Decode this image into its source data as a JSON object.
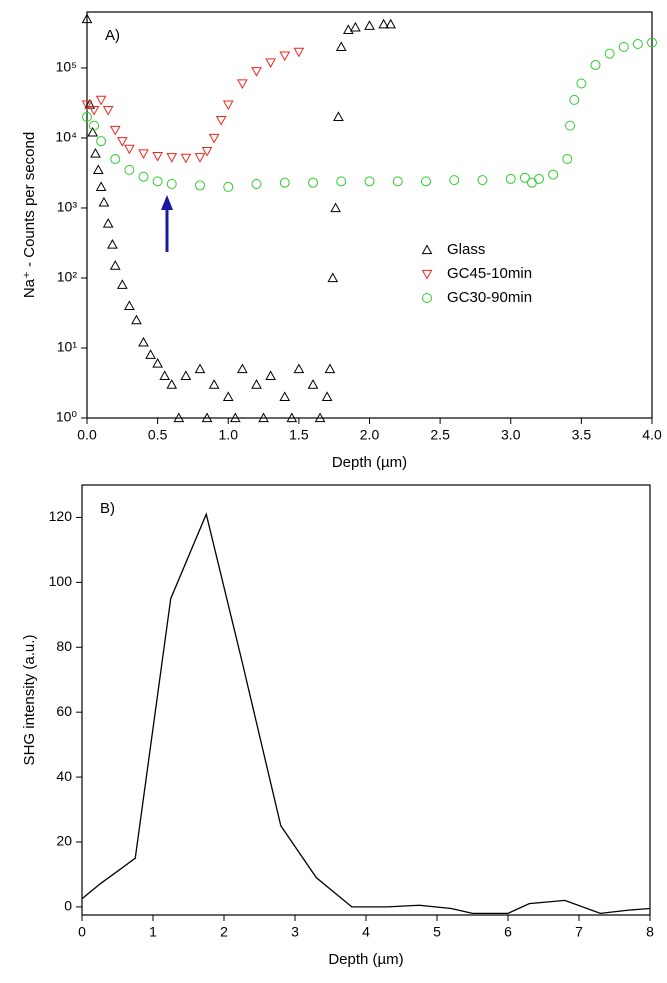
{
  "chart_data": [
    {
      "type": "scatter",
      "annotation": "A)",
      "xlabel": "Depth (µm)",
      "ylabel": "Na⁺ - Counts per second",
      "xlim": [
        0,
        4
      ],
      "ylim": [
        1,
        630000
      ],
      "log_y": true,
      "legend": "right",
      "xticks": [
        {
          "value": 0,
          "label": "0.0"
        },
        0.5,
        {
          "value": 1,
          "label": "1.0"
        },
        1.5,
        {
          "value": 2,
          "label": "2.0"
        },
        2.5,
        {
          "value": 3,
          "label": "3.0"
        },
        3.5,
        {
          "value": 4,
          "label": "4.0"
        }
      ],
      "yticks": [
        {
          "value": 1,
          "label": "10⁰"
        },
        {
          "value": 10,
          "label": "10¹"
        },
        {
          "value": 100,
          "label": "10²"
        },
        {
          "value": 1000,
          "label": "10³"
        },
        {
          "value": 10000,
          "label": "10⁴"
        },
        {
          "value": 100000,
          "label": "10⁵"
        }
      ],
      "series": [
        {
          "name": "Glass",
          "color": "#000000",
          "marker": "triangle-up",
          "x": [
            0,
            0.02,
            0.04,
            0.06,
            0.08,
            0.1,
            0.12,
            0.15,
            0.18,
            0.2,
            0.25,
            0.3,
            0.35,
            0.4,
            0.45,
            0.5,
            0.55,
            0.6,
            0.7,
            0.8,
            0.9,
            1.0,
            1.1,
            1.2,
            1.3,
            1.4,
            1.5,
            1.6,
            1.7,
            1.72,
            1.74,
            1.76,
            1.78,
            1.8,
            1.85,
            1.9,
            2.0,
            2.1,
            2.15,
            0.65,
            0.85,
            1.05,
            1.25,
            1.45,
            1.65
          ],
          "values": [
            500000,
            30000,
            12000,
            6000,
            3500,
            2000,
            1200,
            600,
            300,
            150,
            80,
            40,
            25,
            12,
            8,
            6,
            4,
            3,
            4,
            5,
            3,
            2,
            5,
            3,
            4,
            2,
            5,
            3,
            2,
            5,
            100,
            1000,
            20000,
            200000,
            350000,
            380000,
            400000,
            420000,
            420000,
            1,
            1,
            1,
            1,
            1,
            1
          ]
        },
        {
          "name": "GC45-10min",
          "color": "#e8281e",
          "marker": "triangle-down",
          "x": [
            0,
            0.05,
            0.1,
            0.15,
            0.2,
            0.25,
            0.3,
            0.4,
            0.5,
            0.6,
            0.7,
            0.8,
            0.85,
            0.9,
            0.95,
            1.0,
            1.1,
            1.2,
            1.3,
            1.4,
            1.5
          ],
          "values": [
            30000,
            25000,
            35000,
            25000,
            13000,
            9000,
            7000,
            6000,
            5500,
            5300,
            5200,
            5300,
            6500,
            10000,
            18000,
            30000,
            60000,
            90000,
            120000,
            150000,
            170000
          ]
        },
        {
          "name": "GC30-90min",
          "color": "#2ecc2e",
          "marker": "circle",
          "x": [
            0,
            0.05,
            0.1,
            0.2,
            0.3,
            0.4,
            0.5,
            0.6,
            0.8,
            1.0,
            1.2,
            1.4,
            1.6,
            1.8,
            2.0,
            2.2,
            2.4,
            2.6,
            2.8,
            3.0,
            3.1,
            3.15,
            3.2,
            3.3,
            3.4,
            3.42,
            3.45,
            3.5,
            3.6,
            3.7,
            3.8,
            3.9,
            4.0
          ],
          "values": [
            20000,
            15000,
            9000,
            5000,
            3500,
            2800,
            2400,
            2200,
            2100,
            2000,
            2200,
            2300,
            2300,
            2400,
            2400,
            2400,
            2400,
            2500,
            2500,
            2600,
            2700,
            2300,
            2600,
            3000,
            5000,
            15000,
            35000,
            60000,
            110000,
            160000,
            200000,
            220000,
            230000
          ]
        }
      ]
    },
    {
      "type": "line",
      "annotation": "B)",
      "xlabel": "Depth (µm)",
      "ylabel": "SHG intensity (a.u.)",
      "xlim": [
        0,
        8
      ],
      "ylim": [
        -2.5,
        130
      ],
      "xticks": [
        0,
        1,
        2,
        3,
        4,
        5,
        6,
        7,
        8
      ],
      "yticks": [
        0,
        20,
        40,
        60,
        80,
        100,
        120
      ],
      "series": [
        {
          "color": "#000000",
          "x": [
            0,
            0.25,
            0.75,
            1.25,
            1.75,
            2.25,
            2.8,
            3.3,
            3.8,
            4.3,
            4.75,
            5.2,
            5.5,
            6.0,
            6.3,
            6.8,
            7.3,
            7.7,
            8.0
          ],
          "values": [
            2.5,
            7,
            15,
            95,
            121,
            76,
            25,
            9,
            0,
            0,
            0.5,
            -0.5,
            -2,
            -2,
            1,
            2,
            -2,
            -1,
            -0.5
          ]
        }
      ]
    }
  ]
}
